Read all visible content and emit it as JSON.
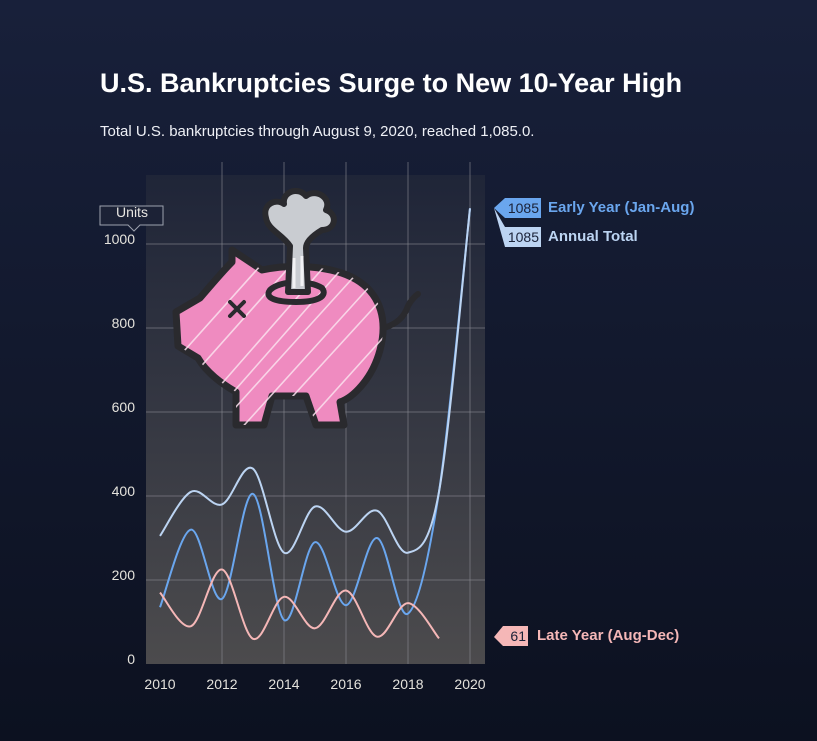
{
  "header": {
    "title": "U.S. Bankruptcies Surge to New 10-Year High",
    "subtitle": "Total U.S. bankruptcies through August 9, 2020, reached 1,085.0."
  },
  "chart_data": {
    "type": "line",
    "ylabel": "Units",
    "xlim": [
      2010,
      2020
    ],
    "ylim": [
      0,
      1000
    ],
    "x_ticks": [
      "2010",
      "2012",
      "2014",
      "2016",
      "2018",
      "2020"
    ],
    "y_ticks": [
      "0",
      "200",
      "400",
      "600",
      "800",
      "1000"
    ],
    "grid": true,
    "legend": "right",
    "series": [
      {
        "name": "Early Year (Jan-Aug)",
        "color": "#6aa6ee",
        "end_label": "1085",
        "x": [
          2010,
          2011,
          2012,
          2013,
          2014,
          2015,
          2016,
          2017,
          2018,
          2019,
          2020
        ],
        "y": [
          135,
          320,
          155,
          405,
          105,
          290,
          140,
          300,
          120,
          410,
          1085
        ]
      },
      {
        "name": "Annual Total",
        "color": "#bcd4f2",
        "end_label": "1085",
        "x": [
          2010,
          2011,
          2012,
          2013,
          2014,
          2015,
          2016,
          2017,
          2018,
          2019,
          2020
        ],
        "y": [
          305,
          410,
          380,
          465,
          265,
          375,
          315,
          365,
          265,
          410,
          1085
        ]
      },
      {
        "name": "Late Year (Aug-Dec)",
        "color": "#f5b7b7",
        "end_label": "61",
        "x": [
          2010,
          2011,
          2012,
          2013,
          2014,
          2015,
          2016,
          2017,
          2018,
          2019
        ],
        "y": [
          170,
          90,
          225,
          60,
          160,
          85,
          175,
          65,
          145,
          61
        ]
      }
    ]
  },
  "illustration": {
    "icon": "broken-piggy-bank-icon",
    "colors": {
      "body": "#ef8bc0",
      "outline": "#2a2a2e",
      "smoke": "#c9ccd1"
    }
  }
}
